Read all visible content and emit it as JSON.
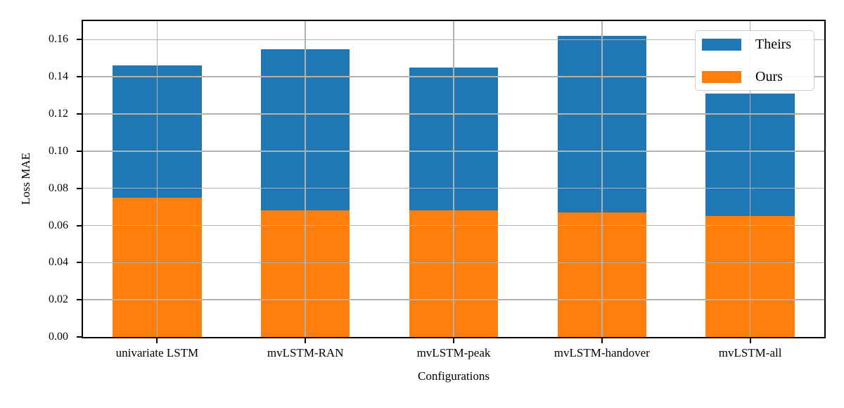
{
  "chart_data": {
    "type": "bar",
    "variant": "overlaid-bars (orange drawn in front of blue, both from zero)",
    "title": "",
    "xlabel": "Configurations",
    "ylabel": "Loss MAE",
    "categories": [
      "univariate LSTM",
      "mvLSTM-RAN",
      "mvLSTM-peak",
      "mvLSTM-handover",
      "mvLSTM-all"
    ],
    "series": [
      {
        "name": "Theirs",
        "color": "#1f77b4",
        "values": [
          0.146,
          0.155,
          0.145,
          0.162,
          0.131
        ]
      },
      {
        "name": "Ours",
        "color": "#ff7f0e",
        "values": [
          0.075,
          0.068,
          0.068,
          0.067,
          0.065
        ]
      }
    ],
    "ylim": [
      0,
      0.17
    ],
    "y_ticks": [
      "0.00",
      "0.02",
      "0.04",
      "0.06",
      "0.08",
      "0.10",
      "0.12",
      "0.14",
      "0.16"
    ],
    "grid": {
      "horizontal": true,
      "vertical": true,
      "color": "#b1b1b1",
      "drawn_above_bars": true
    },
    "legend_position": "upper right",
    "bar_width_fraction": 0.6,
    "colors": {
      "spine": "#000000",
      "background": "#ffffff"
    }
  }
}
